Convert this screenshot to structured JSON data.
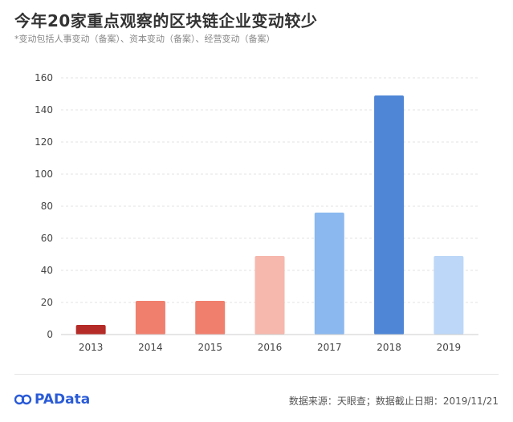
{
  "header": {
    "title": "今年20家重点观察的区块链企业变动较少",
    "subtitle": "*变动包括人事变动（备案）、资本变动（备案）、经营变动（备案）"
  },
  "footer": {
    "brand": "PAData",
    "source": "数据来源：天眼查；数据截止日期：2019/11/21"
  },
  "chart_data": {
    "type": "bar",
    "title": "今年20家重点观察的区块链企业变动较少",
    "subtitle": "*变动包括人事变动（备案）、资本变动（备案）、经营变动（备案）",
    "categories": [
      "2013",
      "2014",
      "2015",
      "2016",
      "2017",
      "2018",
      "2019"
    ],
    "values": [
      6,
      21,
      21,
      49,
      76,
      149,
      49
    ],
    "colors": [
      "#b52b27",
      "#f07f6e",
      "#f07f6e",
      "#f6b8ad",
      "#8ab8ef",
      "#4f86d6",
      "#bcd7f7"
    ],
    "xlabel": "",
    "ylabel": "",
    "ylim": [
      0,
      160
    ],
    "yticks": [
      0,
      20,
      40,
      60,
      80,
      100,
      120,
      140,
      160
    ],
    "grid": true,
    "legend": "none"
  }
}
